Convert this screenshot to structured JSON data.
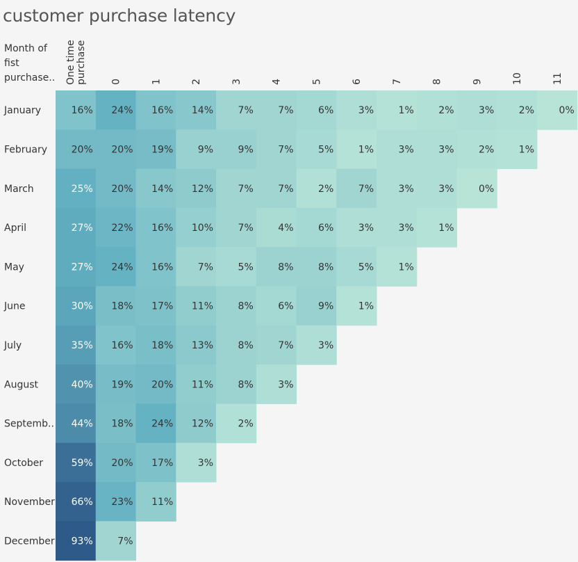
{
  "chart_data": {
    "type": "heatmap",
    "title": "customer purchase latency",
    "row_header": "Month of fist purchase..",
    "columns": [
      "One time purchase",
      "0",
      "1",
      "2",
      "3",
      "4",
      "5",
      "6",
      "7",
      "8",
      "9",
      "10",
      "11"
    ],
    "rows": [
      {
        "label": "January",
        "values": [
          16,
          24,
          16,
          14,
          7,
          7,
          6,
          3,
          1,
          2,
          3,
          2,
          0
        ]
      },
      {
        "label": "February",
        "values": [
          20,
          20,
          19,
          9,
          9,
          7,
          5,
          1,
          3,
          3,
          2,
          1
        ]
      },
      {
        "label": "March",
        "values": [
          25,
          20,
          14,
          12,
          7,
          7,
          2,
          7,
          3,
          3,
          0
        ]
      },
      {
        "label": "April",
        "values": [
          27,
          22,
          16,
          10,
          7,
          4,
          6,
          3,
          3,
          1
        ]
      },
      {
        "label": "May",
        "values": [
          27,
          24,
          16,
          7,
          5,
          8,
          8,
          5,
          1
        ]
      },
      {
        "label": "June",
        "values": [
          30,
          18,
          17,
          11,
          8,
          6,
          9,
          1
        ]
      },
      {
        "label": "July",
        "values": [
          35,
          16,
          18,
          13,
          8,
          7,
          3
        ]
      },
      {
        "label": "August",
        "values": [
          40,
          19,
          20,
          11,
          8,
          3
        ]
      },
      {
        "label": "Septemb..",
        "values": [
          44,
          18,
          24,
          12,
          2
        ]
      },
      {
        "label": "October",
        "values": [
          59,
          20,
          17,
          3
        ]
      },
      {
        "label": "November",
        "values": [
          66,
          23,
          11
        ]
      },
      {
        "label": "December",
        "values": [
          93,
          7
        ]
      }
    ],
    "value_suffix": "%",
    "colors": {
      "low": "#b8e4d8",
      "mid": "#62b0c2",
      "high": "#2e5a89"
    }
  }
}
